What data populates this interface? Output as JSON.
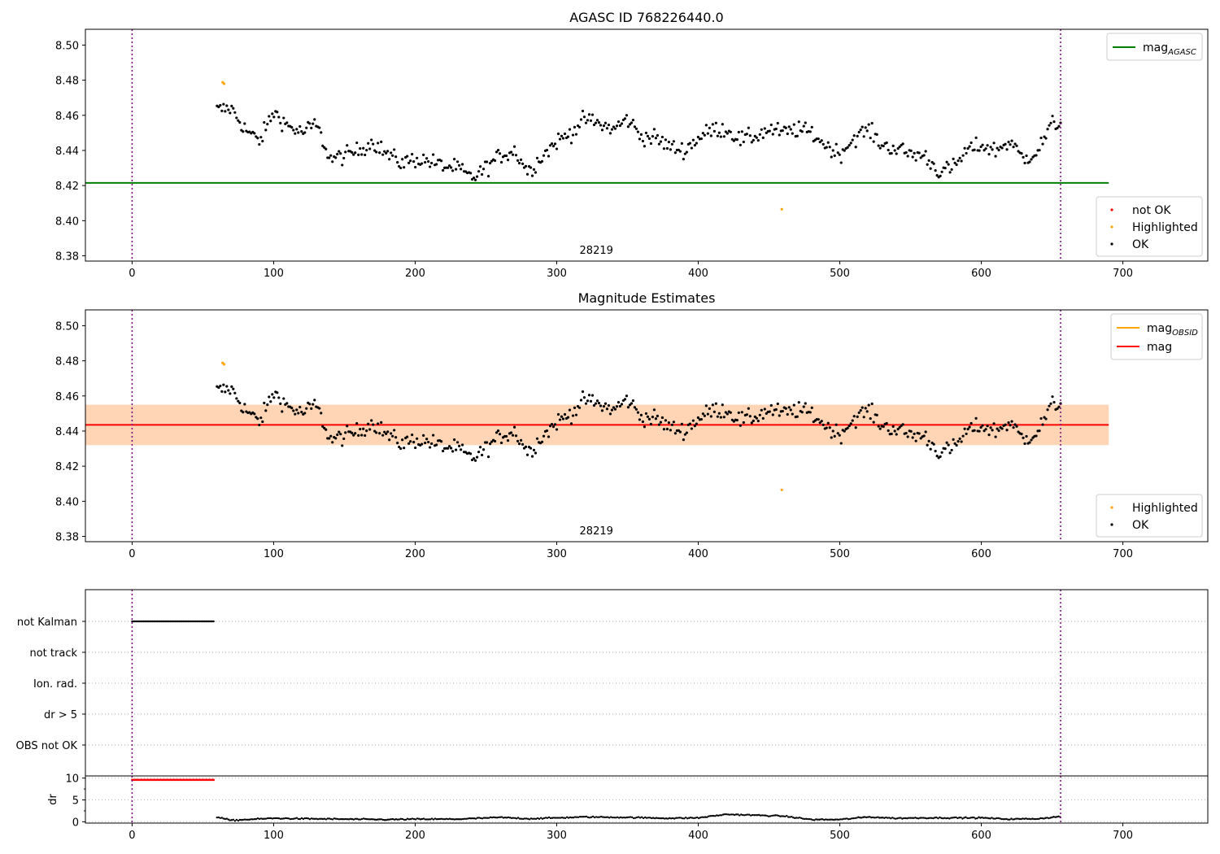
{
  "chart_data": [
    {
      "type": "scatter",
      "title": "AGASC ID 768226440.0",
      "xlim": [
        -33,
        760
      ],
      "ylim": [
        8.377,
        8.509
      ],
      "xticks": [
        0,
        100,
        200,
        300,
        400,
        500,
        600,
        700
      ],
      "yticks": [
        8.38,
        8.4,
        8.42,
        8.44,
        8.46,
        8.48,
        8.5
      ],
      "vlines": [
        0,
        656
      ],
      "annotation": {
        "text": "28219",
        "x": 328,
        "y": 8.382
      },
      "hline": {
        "y": 8.4215,
        "x_start": -33,
        "x_end": 690,
        "color": "#008000"
      },
      "legend_lines": [
        {
          "label": "mag",
          "sub": "AGASC",
          "color": "#008000"
        }
      ],
      "legend_points": [
        {
          "label": "not OK",
          "color": "#ff0000"
        },
        {
          "label": "Highlighted",
          "color": "#ffa500"
        },
        {
          "label": "OK",
          "color": "#000000"
        }
      ],
      "series": [
        {
          "name": "OK",
          "color": "#000000",
          "x_start": 60,
          "x_end": 656,
          "n": 520,
          "anchors": [
            [
              60,
              8.463
            ],
            [
              70,
              8.464
            ],
            [
              80,
              8.452
            ],
            [
              90,
              8.445
            ],
            [
              100,
              8.462
            ],
            [
              110,
              8.454
            ],
            [
              120,
              8.45
            ],
            [
              130,
              8.455
            ],
            [
              140,
              8.435
            ],
            [
              150,
              8.437
            ],
            [
              160,
              8.44
            ],
            [
              170,
              8.445
            ],
            [
              180,
              8.438
            ],
            [
              190,
              8.433
            ],
            [
              200,
              8.435
            ],
            [
              210,
              8.434
            ],
            [
              220,
              8.431
            ],
            [
              230,
              8.43
            ],
            [
              240,
              8.424
            ],
            [
              250,
              8.43
            ],
            [
              260,
              8.437
            ],
            [
              270,
              8.44
            ],
            [
              280,
              8.428
            ],
            [
              290,
              8.437
            ],
            [
              300,
              8.445
            ],
            [
              310,
              8.45
            ],
            [
              320,
              8.458
            ],
            [
              330,
              8.455
            ],
            [
              340,
              8.452
            ],
            [
              350,
              8.458
            ],
            [
              360,
              8.448
            ],
            [
              370,
              8.447
            ],
            [
              380,
              8.442
            ],
            [
              390,
              8.44
            ],
            [
              400,
              8.447
            ],
            [
              410,
              8.452
            ],
            [
              420,
              8.452
            ],
            [
              430,
              8.446
            ],
            [
              440,
              8.448
            ],
            [
              450,
              8.452
            ],
            [
              460,
              8.45
            ],
            [
              470,
              8.452
            ],
            [
              480,
              8.45
            ],
            [
              490,
              8.443
            ],
            [
              500,
              8.438
            ],
            [
              510,
              8.447
            ],
            [
              520,
              8.452
            ],
            [
              530,
              8.443
            ],
            [
              540,
              8.441
            ],
            [
              550,
              8.438
            ],
            [
              560,
              8.437
            ],
            [
              570,
              8.428
            ],
            [
              580,
              8.43
            ],
            [
              590,
              8.44
            ],
            [
              600,
              8.443
            ],
            [
              610,
              8.44
            ],
            [
              620,
              8.445
            ],
            [
              630,
              8.435
            ],
            [
              640,
              8.44
            ],
            [
              650,
              8.455
            ],
            [
              656,
              8.455
            ]
          ],
          "noise": 0.006
        },
        {
          "name": "Highlighted",
          "color": "#ffa500",
          "points": [
            [
              64,
              8.4788
            ],
            [
              65,
              8.478
            ],
            [
              459,
              8.4065
            ]
          ]
        }
      ]
    },
    {
      "type": "scatter",
      "title": "Magnitude Estimates",
      "xlim": [
        -33,
        760
      ],
      "ylim": [
        8.377,
        8.509
      ],
      "xticks": [
        0,
        100,
        200,
        300,
        400,
        500,
        600,
        700
      ],
      "yticks": [
        8.38,
        8.4,
        8.42,
        8.44,
        8.46,
        8.48,
        8.5
      ],
      "vlines": [
        0,
        656
      ],
      "annotation": {
        "text": "28219",
        "x": 328,
        "y": 8.382
      },
      "hline": {
        "y": 8.4435,
        "x_start": -33,
        "x_end": 690,
        "color": "#ff0000"
      },
      "bands": [
        {
          "y0": 8.432,
          "y1": 8.455,
          "x_start": -33,
          "x_end": 690,
          "color": "#ffc0cb",
          "opacity": 0.45
        },
        {
          "y0": 8.432,
          "y1": 8.455,
          "x_start": -33,
          "x_end": 690,
          "color": "#ffa500",
          "opacity": 0.22
        }
      ],
      "legend_lines": [
        {
          "label": "mag",
          "sub": "OBSID",
          "color": "#ffa500"
        },
        {
          "label": "mag",
          "sub": "",
          "color": "#ff0000"
        }
      ],
      "legend_points": [
        {
          "label": "Highlighted",
          "color": "#ffa500"
        },
        {
          "label": "OK",
          "color": "#000000"
        }
      ]
    },
    {
      "type": "scatter",
      "title": "",
      "xlim": [
        -33,
        760
      ],
      "vlines": [
        0,
        656
      ],
      "categories": [
        "not Kalman",
        "not track",
        "Ion. rad.",
        "dr > 5",
        "OBS not OK"
      ],
      "flags": [
        {
          "category": "not Kalman",
          "x_start": 0,
          "x_end": 58,
          "color": "#000000"
        }
      ]
    },
    {
      "type": "scatter",
      "title": "",
      "ylabel": "dr",
      "xlim": [
        -33,
        760
      ],
      "ylim": [
        -0.3,
        10.5
      ],
      "xticks": [
        0,
        100,
        200,
        300,
        400,
        500,
        600,
        700
      ],
      "yticks": [
        0,
        5,
        10
      ],
      "vlines": [
        0,
        656
      ],
      "series": [
        {
          "name": "dr > 5",
          "color": "#ff0000",
          "x_start": 0,
          "x_end": 58,
          "value": 9.6
        },
        {
          "name": "dr",
          "color": "#000000",
          "x_start": 60,
          "x_end": 656,
          "anchors": [
            [
              60,
              1.1
            ],
            [
              70,
              0.3
            ],
            [
              80,
              0.5
            ],
            [
              100,
              0.8
            ],
            [
              120,
              0.7
            ],
            [
              150,
              0.6
            ],
            [
              180,
              0.5
            ],
            [
              200,
              0.6
            ],
            [
              230,
              0.6
            ],
            [
              260,
              1.0
            ],
            [
              280,
              0.7
            ],
            [
              300,
              0.9
            ],
            [
              320,
              1.1
            ],
            [
              350,
              1.0
            ],
            [
              380,
              0.8
            ],
            [
              400,
              0.9
            ],
            [
              420,
              1.7
            ],
            [
              440,
              1.5
            ],
            [
              460,
              1.3
            ],
            [
              480,
              0.5
            ],
            [
              500,
              0.5
            ],
            [
              520,
              1.1
            ],
            [
              540,
              0.8
            ],
            [
              560,
              0.9
            ],
            [
              580,
              0.9
            ],
            [
              600,
              0.9
            ],
            [
              620,
              0.6
            ],
            [
              640,
              0.7
            ],
            [
              656,
              1.2
            ]
          ],
          "noise": 0.2
        }
      ]
    }
  ]
}
